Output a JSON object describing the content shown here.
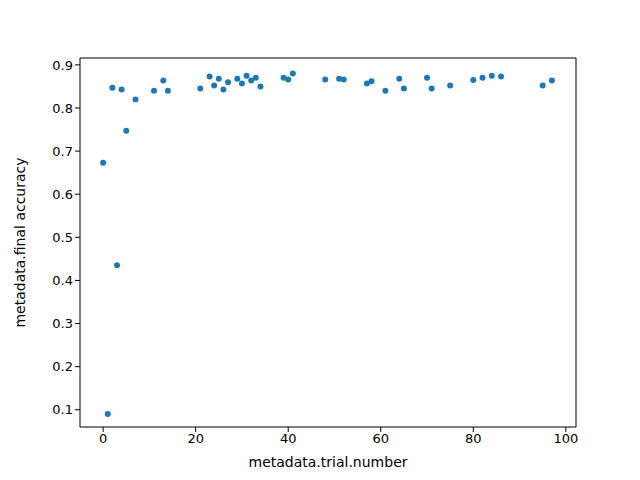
{
  "chart_data": {
    "type": "scatter",
    "x_label": "metadata.trial.number",
    "y_label": "metadata.final accuracy",
    "x": [
      0,
      1,
      2,
      3,
      4,
      5,
      7,
      11,
      13,
      14,
      21,
      23,
      24,
      25,
      26,
      27,
      29,
      30,
      31,
      32,
      33,
      34,
      39,
      40,
      41,
      48,
      51,
      52,
      57,
      58,
      61,
      64,
      65,
      70,
      71,
      75,
      80,
      82,
      84,
      86,
      95,
      97
    ],
    "values": [
      0.673,
      0.09,
      0.847,
      0.435,
      0.843,
      0.747,
      0.82,
      0.84,
      0.864,
      0.84,
      0.845,
      0.873,
      0.852,
      0.868,
      0.843,
      0.86,
      0.868,
      0.857,
      0.875,
      0.864,
      0.87,
      0.85,
      0.87,
      0.866,
      0.88,
      0.866,
      0.868,
      0.866,
      0.857,
      0.862,
      0.84,
      0.868,
      0.845,
      0.87,
      0.845,
      0.852,
      0.865,
      0.87,
      0.875,
      0.873,
      0.852,
      0.864
    ],
    "color": "#1f77b4",
    "marker": "circle",
    "xlim": [
      -5,
      102.2
    ],
    "ylim": [
      0.06,
      0.916
    ],
    "xticks": [
      0,
      20,
      40,
      60,
      80,
      100
    ],
    "yticks": [
      0.1,
      0.2,
      0.3,
      0.4,
      0.5,
      0.6,
      0.7,
      0.8,
      0.9
    ]
  }
}
